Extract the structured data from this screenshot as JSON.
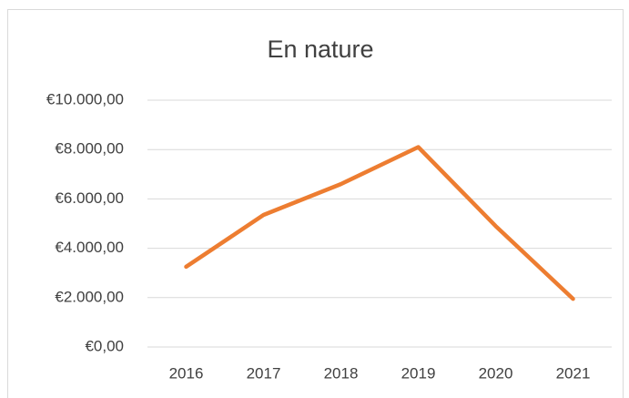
{
  "chart_data": {
    "type": "line",
    "title": "En nature",
    "categories": [
      "2016",
      "2017",
      "2018",
      "2019",
      "2020",
      "2021"
    ],
    "series": [
      {
        "name": "En nature",
        "color": "#ed7d31",
        "values": [
          3250,
          5350,
          6600,
          8100,
          4900,
          1950
        ]
      }
    ],
    "ylim": [
      0,
      10000
    ],
    "yticks": [
      {
        "value": 0,
        "label": "€0,00"
      },
      {
        "value": 2000,
        "label": "€2.000,00"
      },
      {
        "value": 4000,
        "label": "€4.000,00"
      },
      {
        "value": 6000,
        "label": "€6.000,00"
      },
      {
        "value": 8000,
        "label": "€8.000,00"
      },
      {
        "value": 10000,
        "label": "€10.000,00"
      }
    ],
    "grid": true
  }
}
